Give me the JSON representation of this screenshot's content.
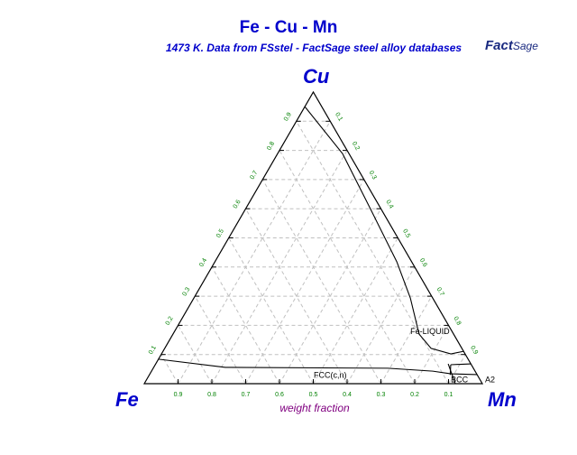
{
  "chart_data": {
    "type": "ternary",
    "title": "Fe - Cu - Mn",
    "subtitle": "1473 K.  Data from FSstel - FactSage steel alloy databases",
    "logo_text": "FactSage",
    "components": {
      "left": "Fe",
      "right": "Mn",
      "top": "Cu"
    },
    "axis_label": "weight fraction",
    "ticks": [
      "0.1",
      "0.2",
      "0.3",
      "0.4",
      "0.5",
      "0.6",
      "0.7",
      "0.8",
      "0.9"
    ],
    "grid": "dashed, 0.1 steps",
    "boundaries": [
      {
        "name": "liquid-boundary",
        "points_cu_mn": [
          [
            0.95,
            0.0
          ],
          [
            0.789,
            0.192
          ],
          [
            0.604,
            0.365
          ],
          [
            0.418,
            0.538
          ],
          [
            0.294,
            0.64
          ],
          [
            0.17,
            0.728
          ],
          [
            0.121,
            0.788
          ],
          [
            0.102,
            0.856
          ],
          [
            0.111,
            0.889
          ]
        ]
      },
      {
        "name": "bcc-upper-boundary",
        "points_cu_mn": [
          [
            0.065,
            0.874
          ],
          [
            0.068,
            0.932
          ]
        ]
      },
      {
        "name": "fcc-boundary",
        "points_cu_mn": [
          [
            0.084,
            0.0
          ],
          [
            0.056,
            0.212
          ],
          [
            0.053,
            0.694
          ],
          [
            0.043,
            0.832
          ],
          [
            0.034,
            0.89
          ],
          [
            0.031,
            0.969
          ]
        ]
      },
      {
        "name": "bcc-left-boundary",
        "points_cu_mn": [
          [
            0.065,
            0.874
          ],
          [
            0.03,
            0.89
          ]
        ]
      },
      {
        "name": "bcc-diagonal-boundary",
        "points_cu_mn": [
          [
            0.068,
            0.865
          ],
          [
            0.0,
            0.92
          ]
        ]
      }
    ],
    "phase_labels": [
      {
        "text": "Fe-LIQUID",
        "cu": 0.17,
        "mn": 0.76
      },
      {
        "text": "FCC(c,n)",
        "cu": 0.02,
        "mn": 0.54
      },
      {
        "text": "BCC",
        "cu": 0.005,
        "mn": 0.93
      },
      {
        "text": "A2",
        "cu": 0.005,
        "mn": 1.0
      }
    ]
  },
  "colors": {
    "title": "#0000cc",
    "tick": "#008000",
    "axis_label": "#800080",
    "grid": "#c0c0c0"
  }
}
